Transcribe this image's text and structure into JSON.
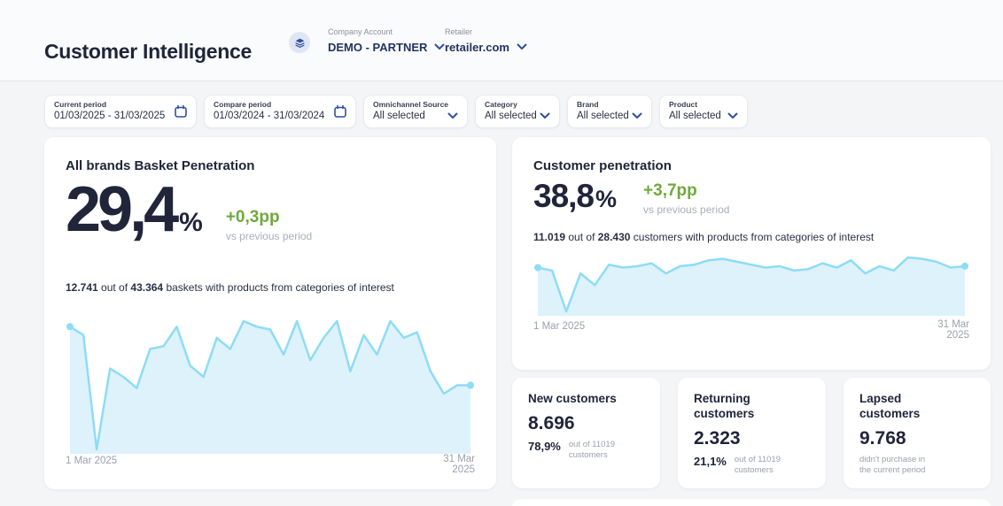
{
  "colors": {
    "accent_blue": "#2e4f9e",
    "green": "#6fa93c",
    "chart_line": "#8edcf5",
    "chart_fill": "#ddf2fb"
  },
  "header": {
    "title": "Customer Intelligence",
    "company_account_label": "Company Account",
    "company_account_value": "DEMO - PARTNER",
    "retailer_label": "Retailer",
    "retailer_value": "retailer.com"
  },
  "filters": [
    {
      "label": "Current period",
      "value": "01/03/2025 - 31/03/2025"
    },
    {
      "label": "Compare period",
      "value": "01/03/2024 - 31/03/2024"
    },
    {
      "label": "Omnichannel Source",
      "value": "All selected"
    },
    {
      "label": "Category",
      "value": "All selected"
    },
    {
      "label": "Brand",
      "value": "All selected"
    },
    {
      "label": "Product",
      "value": "All selected"
    }
  ],
  "basket_card": {
    "title": "All brands Basket Penetration",
    "value": "29,4",
    "percent": "%",
    "delta": "+0,3pp",
    "delta_caption": "vs previous period",
    "detail": {
      "n1": "12.741",
      "mid": " out of ",
      "n2": "43.364",
      "rest": " baskets with products from categories of interest"
    },
    "x_start": "1 Mar 2025",
    "x_end": "31 Mar 2025"
  },
  "customer_card": {
    "title": "Customer penetration",
    "value": "38,8",
    "percent": "%",
    "delta": "+3,7pp",
    "delta_caption": "vs previous period",
    "detail": {
      "n1": "11.019",
      "mid": " out of ",
      "n2": "28.430",
      "rest": " customers with products from categories of interest"
    },
    "x_start": "1 Mar 2025",
    "x_end": "31 Mar 2025"
  },
  "stats": [
    {
      "title": "New customers",
      "value": "8.696",
      "pct": "78,9%",
      "caption": "out of 11019 customers"
    },
    {
      "title": "Returning customers",
      "value": "2.323",
      "pct": "21,1%",
      "caption": "out of 11019 customers"
    },
    {
      "title": "Lapsed customers",
      "value": "9.768",
      "caption": "didn't purchase in the current period"
    }
  ],
  "chart_data": [
    {
      "type": "area",
      "title": "All brands Basket Penetration daily",
      "x_start": "1 Mar 2025",
      "x_end": "31 Mar 2025",
      "values": [
        33.5,
        32,
        11.5,
        26,
        24.5,
        22.5,
        29.5,
        30,
        33.5,
        26.5,
        24.5,
        31.5,
        29.5,
        34.5,
        33.5,
        33,
        28.5,
        34.5,
        27.5,
        31.5,
        34.5,
        25.5,
        32,
        28.5,
        34.5,
        31.5,
        32.5,
        25.5,
        21.5,
        23,
        23
      ]
    },
    {
      "type": "area",
      "title": "Customer penetration daily",
      "x_start": "1 Mar 2025",
      "x_end": "31 Mar 2025",
      "values": [
        43,
        41,
        13,
        39,
        31,
        45,
        43,
        44,
        46,
        39,
        44,
        45,
        48,
        49,
        47,
        45,
        43,
        44,
        41,
        42,
        46,
        43,
        48,
        39,
        44,
        41,
        50,
        49,
        47,
        43,
        44
      ]
    }
  ]
}
